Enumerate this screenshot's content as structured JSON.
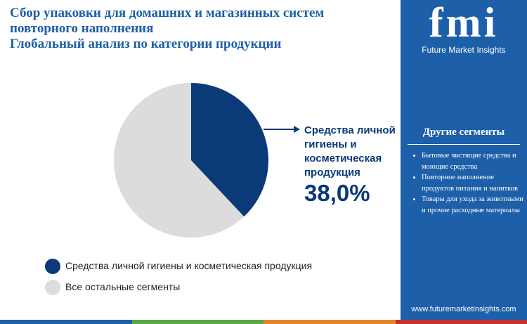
{
  "chart_data": {
    "type": "pie",
    "title": "Сбор упаковки для домашних и магазинных систем повторного наполнения",
    "subtitle": "Глобальный анализ по категории продукции",
    "categories": [
      "Средства личной гигиены и косметическая продукция",
      "Все остальные сегменты"
    ],
    "values": [
      38.0,
      62.0
    ],
    "value_labels": [
      "38,0%",
      null
    ],
    "colors": [
      "#0b3a78",
      "#dcdcdc"
    ]
  },
  "sidebar": {
    "brand": "fmi",
    "brand_name": "Future Market Insights",
    "heading": "Другие сегменты",
    "items": [
      "Бытовые чистящие средства и моющие средства",
      "Повторное наполнение продуктов питания и напитков",
      "Товары для ухода за животными и прочие расходные материалы"
    ],
    "url": "www.futuremarketinsights.com"
  }
}
